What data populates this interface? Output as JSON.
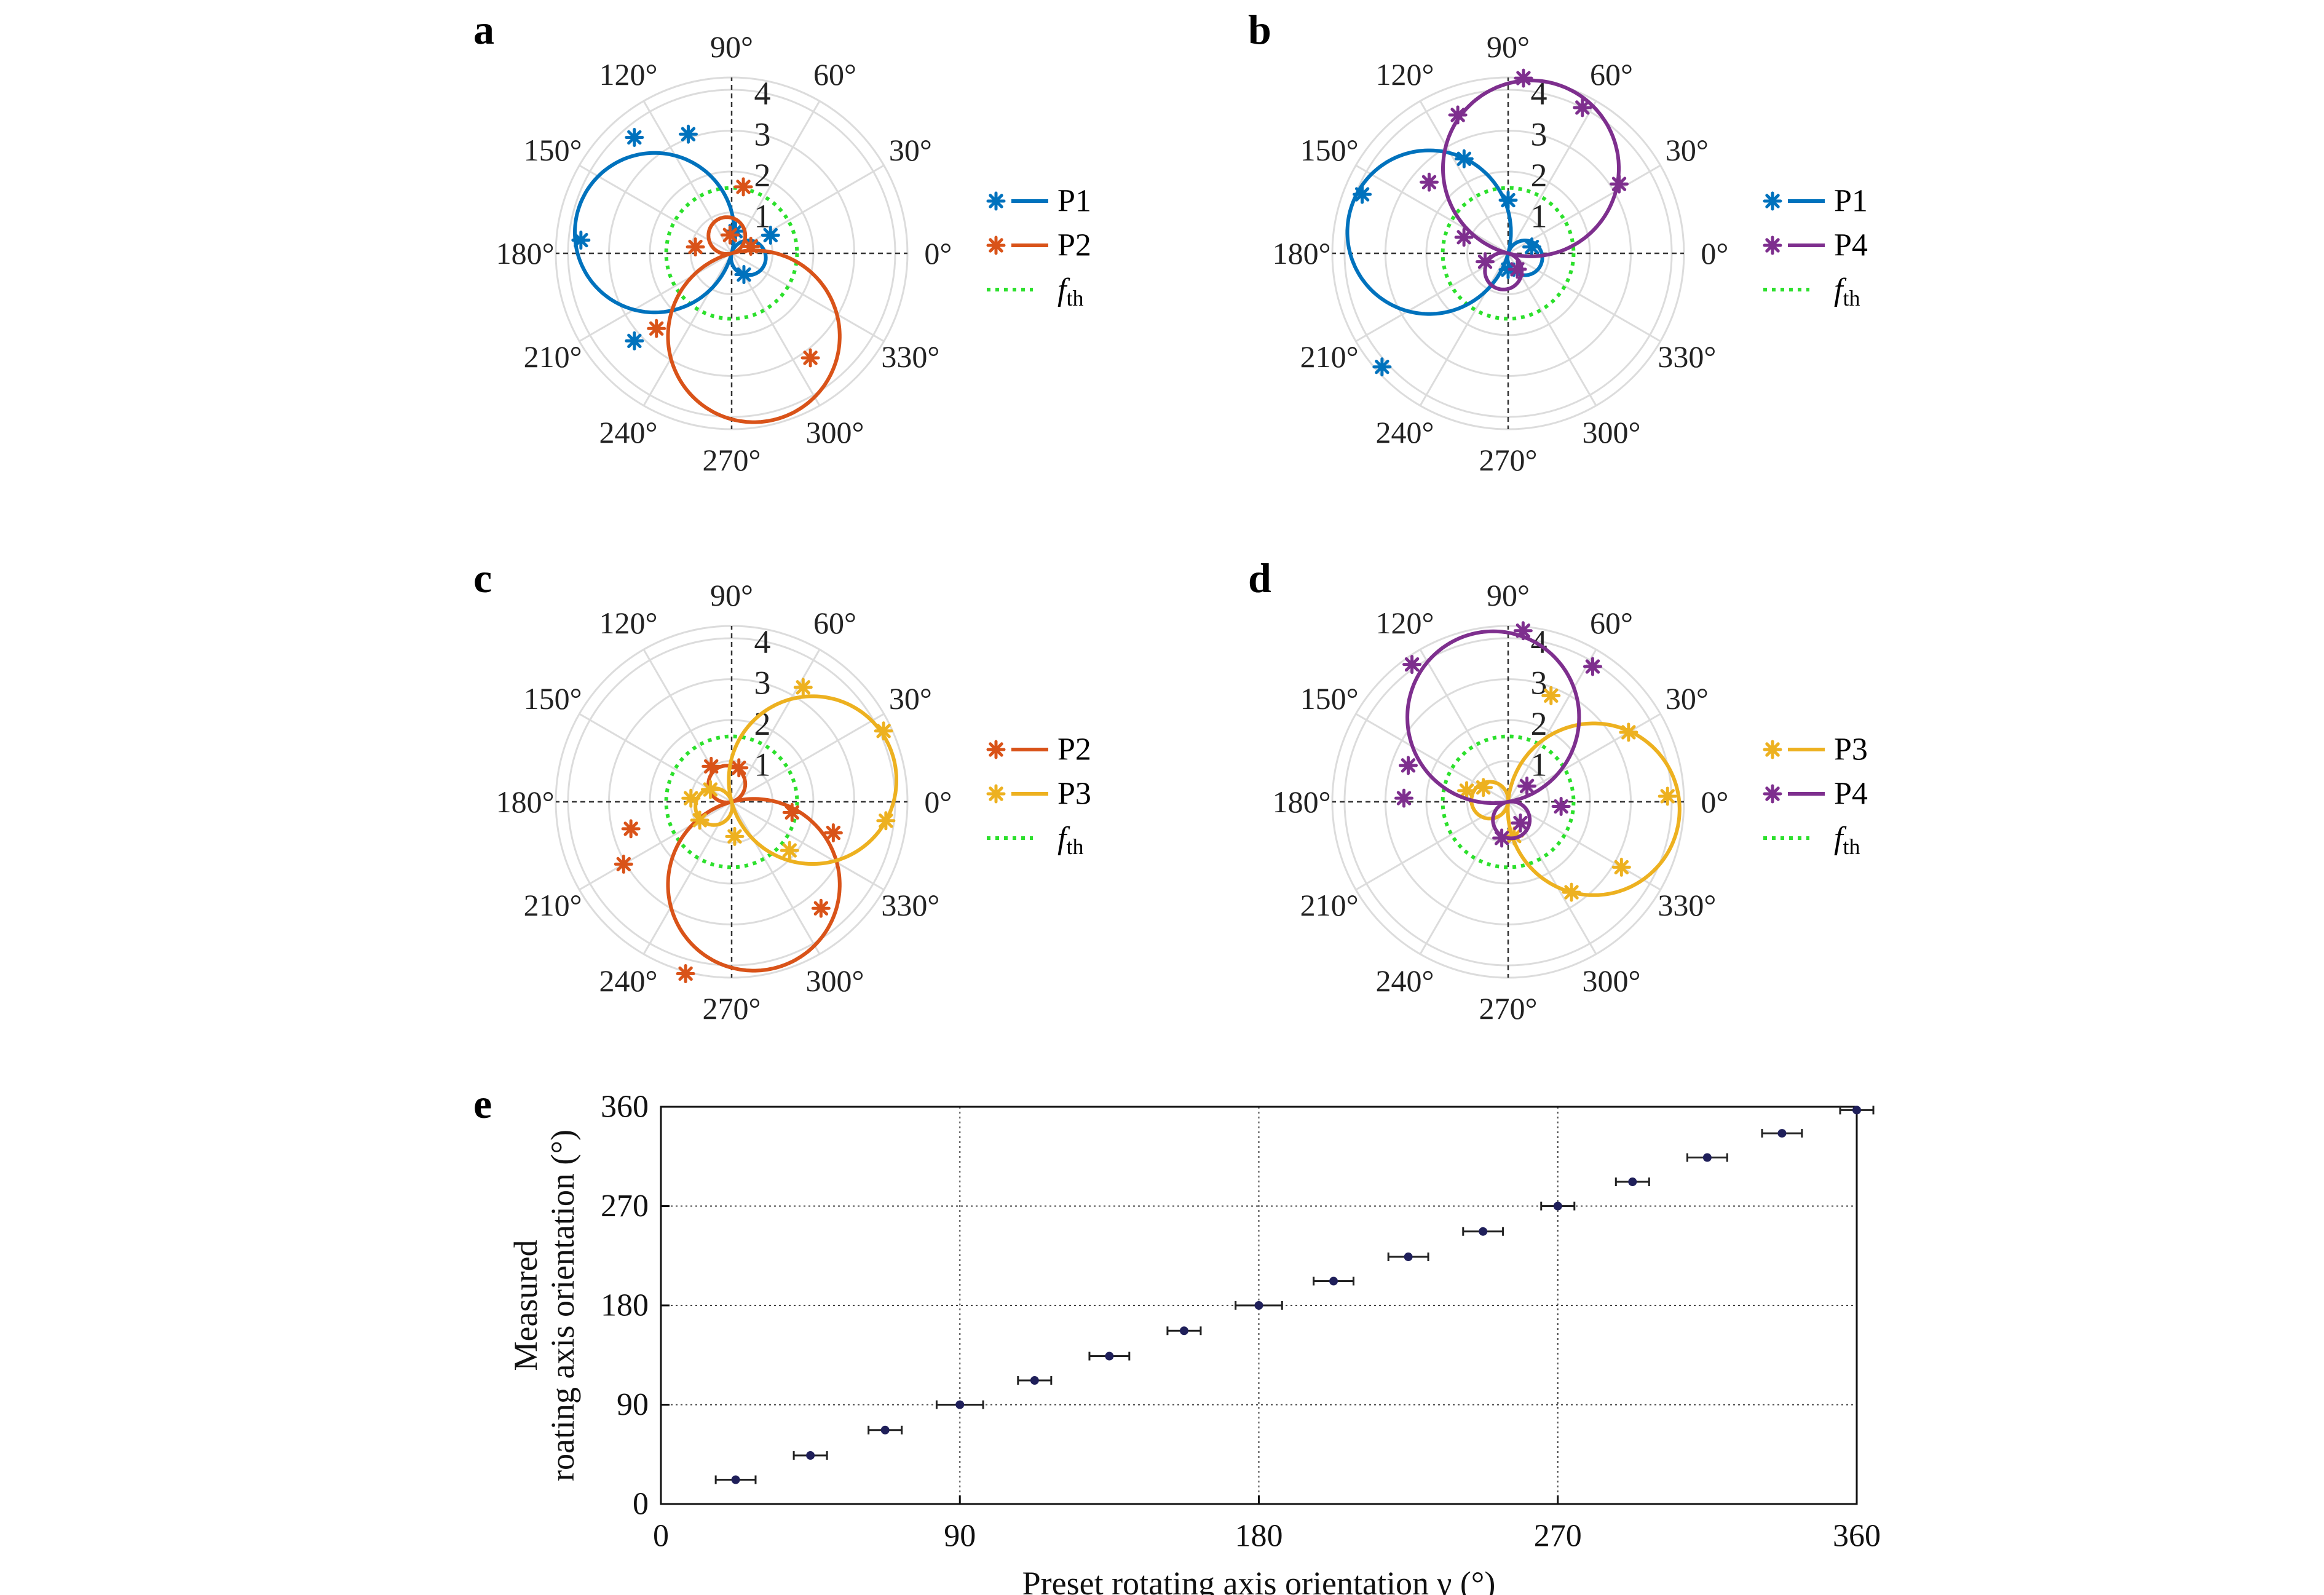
{
  "chart_data": [
    {
      "panel": "a",
      "type": "polar",
      "angle_ticks": [
        "90°",
        "60°",
        "30°",
        "0°",
        "330°",
        "300°",
        "270°",
        "240°",
        "210°",
        "180°",
        "150°",
        "120°"
      ],
      "radial_ticks": [
        "1",
        "2",
        "3",
        "4"
      ],
      "rlim": [
        0,
        4.3
      ],
      "threshold": 1.6,
      "legend": [
        "P1",
        "P2",
        "f"
      ],
      "legend_sub": "th",
      "series": [
        {
          "name": "P1",
          "color": "#0072BD",
          "circle": {
            "angle": 165,
            "diameter": 3.9
          },
          "lobe": {
            "angle": 345,
            "diameter": 0.85
          },
          "points": [
            [
              110,
              3.1
            ],
            [
              130,
              3.7
            ],
            [
              175,
              3.7
            ],
            [
              222,
              3.2
            ],
            [
              25,
              1.05
            ],
            [
              80,
              0.55
            ],
            [
              300,
              0.6
            ]
          ]
        },
        {
          "name": "P2",
          "color": "#D95319",
          "circle": {
            "angle": 285,
            "diameter": 4.2
          },
          "lobe": {
            "angle": 105,
            "diameter": 0.9
          },
          "points": [
            [
              225,
              2.6
            ],
            [
              307,
              3.2
            ],
            [
              80,
              1.65
            ],
            [
              170,
              0.9
            ],
            [
              95,
              0.45
            ],
            [
              20,
              0.5
            ]
          ]
        }
      ]
    },
    {
      "panel": "b",
      "type": "polar",
      "angle_ticks": [
        "90°",
        "60°",
        "30°",
        "0°",
        "330°",
        "300°",
        "270°",
        "240°",
        "210°",
        "180°",
        "150°",
        "120°"
      ],
      "radial_ticks": [
        "1",
        "2",
        "3",
        "4"
      ],
      "rlim": [
        0,
        4.3
      ],
      "threshold": 1.6,
      "legend": [
        "P1",
        "P4",
        "f"
      ],
      "legend_sub": "th",
      "series": [
        {
          "name": "P1",
          "color": "#0072BD",
          "circle": {
            "angle": 165,
            "diameter": 4.0
          },
          "lobe": {
            "angle": 345,
            "diameter": 0.85
          },
          "points": [
            [
              115,
              2.55
            ],
            [
              158,
              3.85
            ],
            [
              222,
              4.15
            ],
            [
              90,
              1.3
            ],
            [
              15,
              0.6
            ],
            [
              270,
              0.4
            ]
          ]
        },
        {
          "name": "P4",
          "color": "#7E2F8E",
          "circle": {
            "angle": 75,
            "diameter": 4.3
          },
          "lobe": {
            "angle": 255,
            "diameter": 0.9
          },
          "points": [
            [
              85,
              4.3
            ],
            [
              63,
              4.0
            ],
            [
              32,
              3.2
            ],
            [
              110,
              3.6
            ],
            [
              138,
              2.6
            ],
            [
              160,
              1.15
            ],
            [
              200,
              0.6
            ],
            [
              300,
              0.45
            ]
          ]
        }
      ]
    },
    {
      "panel": "c",
      "type": "polar",
      "angle_ticks": [
        "90°",
        "60°",
        "30°",
        "0°",
        "330°",
        "300°",
        "270°",
        "240°",
        "210°",
        "180°",
        "150°",
        "120°"
      ],
      "radial_ticks": [
        "1",
        "2",
        "3",
        "4"
      ],
      "rlim": [
        0,
        4.3
      ],
      "threshold": 1.6,
      "legend": [
        "P2",
        "P3",
        "f"
      ],
      "legend_sub": "th",
      "series": [
        {
          "name": "P2",
          "color": "#D95319",
          "circle": {
            "angle": 285,
            "diameter": 4.2
          },
          "lobe": {
            "angle": 105,
            "diameter": 0.9
          },
          "points": [
            [
              195,
              2.55
            ],
            [
              210,
              3.05
            ],
            [
              255,
              4.35
            ],
            [
              310,
              3.4
            ],
            [
              343,
              2.6
            ],
            [
              350,
              1.5
            ],
            [
              120,
              1.0
            ],
            [
              78,
              0.85
            ]
          ]
        },
        {
          "name": "P3",
          "color": "#EDB120",
          "circle": {
            "angle": 15,
            "diameter": 4.1
          },
          "lobe": {
            "angle": 195,
            "diameter": 0.9
          },
          "points": [
            [
              58,
              3.3
            ],
            [
              25,
              4.1
            ],
            [
              353,
              3.8
            ],
            [
              320,
              1.85
            ],
            [
              275,
              0.85
            ],
            [
              210,
              0.9
            ],
            [
              175,
              1.0
            ],
            [
              150,
              0.6
            ]
          ]
        }
      ]
    },
    {
      "panel": "d",
      "type": "polar",
      "angle_ticks": [
        "90°",
        "60°",
        "30°",
        "0°",
        "330°",
        "300°",
        "270°",
        "240°",
        "210°",
        "180°",
        "150°",
        "120°"
      ],
      "radial_ticks": [
        "1",
        "2",
        "3",
        "4"
      ],
      "rlim": [
        0,
        4.3
      ],
      "threshold": 1.6,
      "legend": [
        "P3",
        "P4",
        "f"
      ],
      "legend_sub": "th",
      "series": [
        {
          "name": "P3",
          "color": "#EDB120",
          "circle": {
            "angle": 355,
            "diameter": 4.2
          },
          "lobe": {
            "angle": 175,
            "diameter": 0.9
          },
          "points": [
            [
              68,
              2.8
            ],
            [
              30,
              3.4
            ],
            [
              2,
              3.9
            ],
            [
              330,
              3.2
            ],
            [
              305,
              2.7
            ],
            [
              280,
              0.85
            ],
            [
              165,
              1.05
            ],
            [
              150,
              0.7
            ]
          ]
        },
        {
          "name": "P4",
          "color": "#7E2F8E",
          "circle": {
            "angle": 100,
            "diameter": 4.2
          },
          "lobe": {
            "angle": 280,
            "diameter": 0.9
          },
          "points": [
            [
              85,
              4.2
            ],
            [
              58,
              3.9
            ],
            [
              125,
              4.1
            ],
            [
              160,
              2.6
            ],
            [
              178,
              2.55
            ],
            [
              355,
              1.3
            ],
            [
              260,
              0.9
            ],
            [
              40,
              0.6
            ],
            [
              300,
              0.6
            ]
          ]
        }
      ]
    },
    {
      "panel": "e",
      "type": "scatter",
      "xlabel": "Preset rotating axis orientation γ (°)",
      "ylabel_lines": [
        "Measured",
        "roating axis orientation (°)"
      ],
      "xlim": [
        0,
        360
      ],
      "ylim": [
        0,
        360
      ],
      "xticks": [
        0,
        90,
        180,
        270,
        360
      ],
      "yticks": [
        0,
        90,
        180,
        270,
        360
      ],
      "grid": true,
      "color": "#1f1f5a",
      "points": [
        {
          "x": 22.5,
          "y": 22,
          "err": 3
        },
        {
          "x": 45,
          "y": 44,
          "err": 2.5
        },
        {
          "x": 67.5,
          "y": 67,
          "err": 2.5
        },
        {
          "x": 90,
          "y": 90,
          "err": 3.5
        },
        {
          "x": 112.5,
          "y": 112,
          "err": 2.5
        },
        {
          "x": 135,
          "y": 134,
          "err": 3
        },
        {
          "x": 157.5,
          "y": 157,
          "err": 2.5
        },
        {
          "x": 180,
          "y": 180,
          "err": 3.5
        },
        {
          "x": 202.5,
          "y": 202,
          "err": 3
        },
        {
          "x": 225,
          "y": 224,
          "err": 3
        },
        {
          "x": 247.5,
          "y": 247,
          "err": 3
        },
        {
          "x": 270,
          "y": 270,
          "err": 2.5
        },
        {
          "x": 292.5,
          "y": 292,
          "err": 2.5
        },
        {
          "x": 315,
          "y": 314,
          "err": 3
        },
        {
          "x": 337.5,
          "y": 336,
          "err": 3
        },
        {
          "x": 360,
          "y": 357,
          "err": 2.5
        }
      ]
    }
  ]
}
